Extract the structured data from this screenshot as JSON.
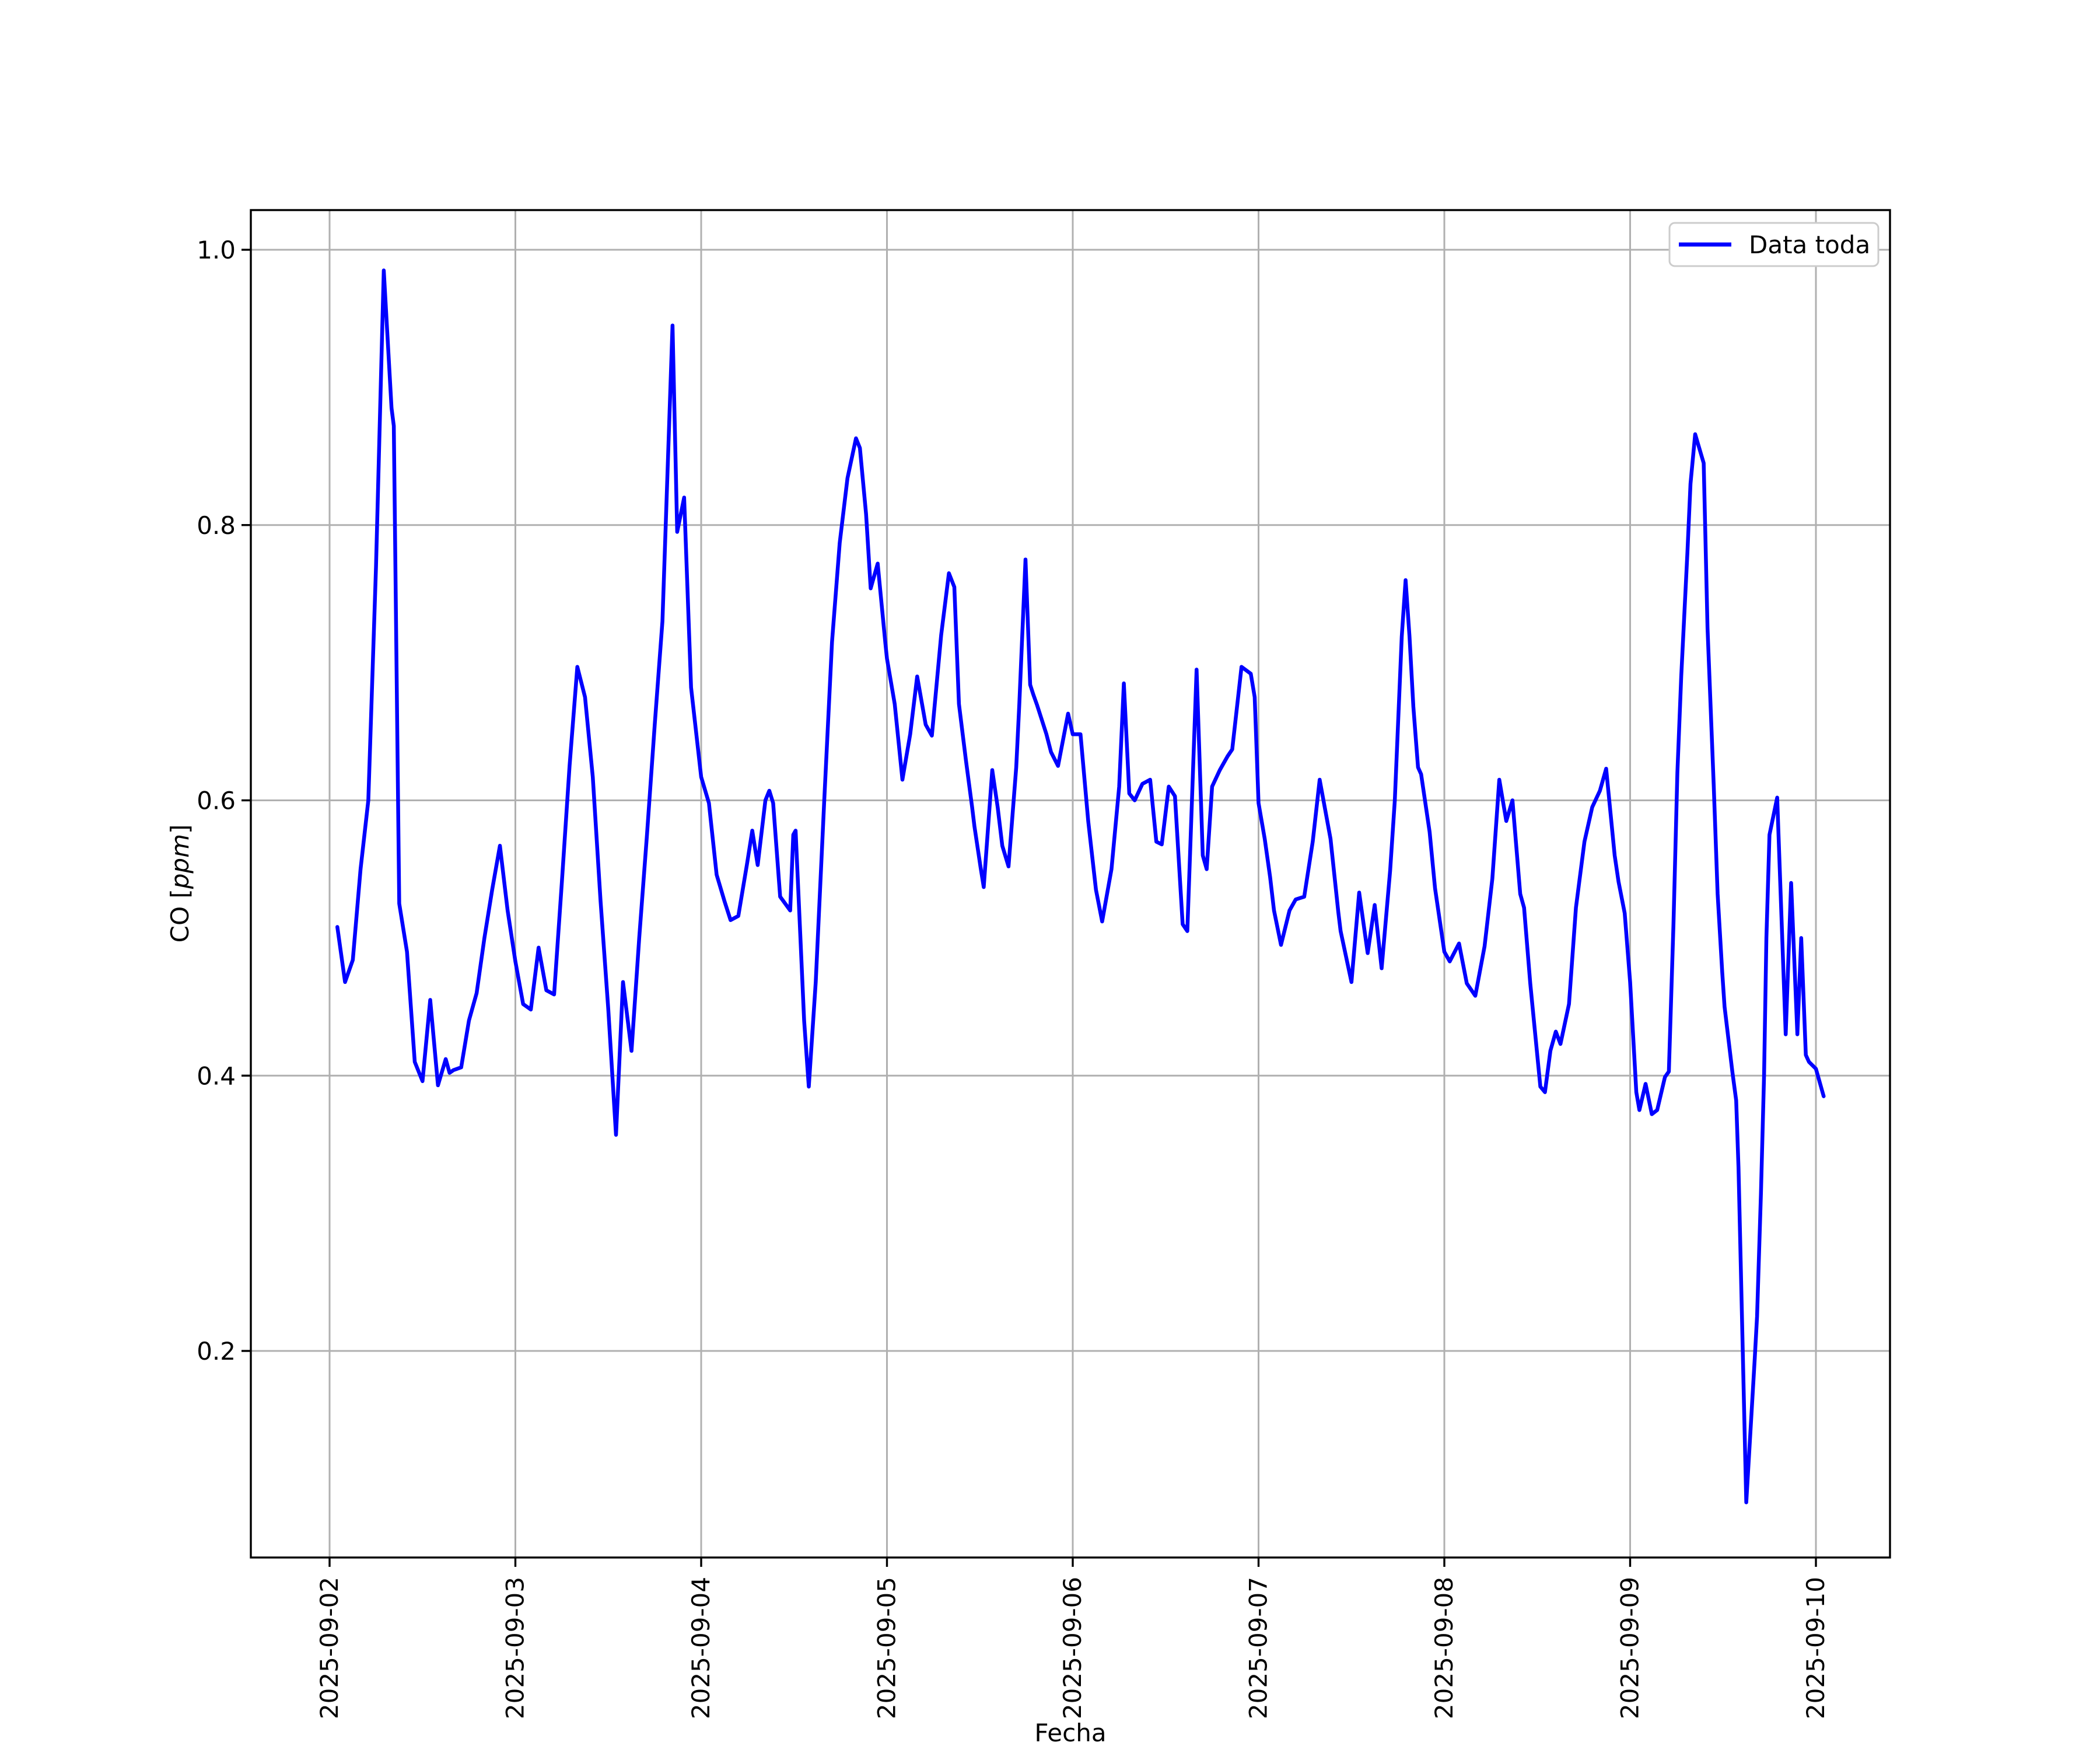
{
  "figure": {
    "background": "#ffffff",
    "axes_background": "#ffffff",
    "spine_color": "#000000",
    "grid_color": "#b0b0b0"
  },
  "chart_data": {
    "type": "line",
    "title": "",
    "xlabel": "Fecha",
    "ylabel": "CO [ppm]",
    "ylabel_parts": {
      "prefix": "CO [",
      "italic": "ppm",
      "suffix": "]"
    },
    "grid": true,
    "legend": {
      "position": "upper right",
      "entries": [
        {
          "label": "Data toda",
          "color": "#0000ff"
        }
      ]
    },
    "x_axis": {
      "label": "Fecha",
      "tick_labels": [
        "2025-09-02",
        "2025-09-03",
        "2025-09-04",
        "2025-09-05",
        "2025-09-06",
        "2025-09-07",
        "2025-09-08",
        "2025-09-09",
        "2025-09-10"
      ],
      "tick_hours": [
        0,
        24,
        48,
        72,
        96,
        120,
        144,
        168,
        192
      ],
      "unit": "hours since 2025-09-02 00:00"
    },
    "y_axis": {
      "ticks": [
        0.2,
        0.4,
        0.6,
        0.8,
        1.0
      ],
      "tick_labels": [
        "0.2",
        "0.4",
        "0.6",
        "0.8",
        "1.0"
      ],
      "range": [
        0.05,
        1.03
      ]
    },
    "series": [
      {
        "name": "Data toda",
        "color": "#0000ff",
        "points": [
          [
            1,
            0.508
          ],
          [
            2,
            0.468
          ],
          [
            3,
            0.484
          ],
          [
            4,
            0.55
          ],
          [
            5,
            0.6
          ],
          [
            6,
            0.77
          ],
          [
            7,
            0.985
          ],
          [
            8,
            0.885
          ],
          [
            8.3,
            0.872
          ],
          [
            9,
            0.525
          ],
          [
            10,
            0.49
          ],
          [
            11,
            0.41
          ],
          [
            12,
            0.396
          ],
          [
            13,
            0.455
          ],
          [
            14,
            0.393
          ],
          [
            15,
            0.412
          ],
          [
            15.5,
            0.402
          ],
          [
            16,
            0.404
          ],
          [
            17,
            0.406
          ],
          [
            18,
            0.44
          ],
          [
            19,
            0.46
          ],
          [
            20,
            0.5
          ],
          [
            21,
            0.535
          ],
          [
            22,
            0.567
          ],
          [
            23,
            0.52
          ],
          [
            24,
            0.483
          ],
          [
            25,
            0.452
          ],
          [
            26,
            0.448
          ],
          [
            27,
            0.493
          ],
          [
            28,
            0.462
          ],
          [
            29,
            0.459
          ],
          [
            30,
            0.54
          ],
          [
            31,
            0.625
          ],
          [
            32,
            0.697
          ],
          [
            33,
            0.675
          ],
          [
            34,
            0.617
          ],
          [
            35,
            0.527
          ],
          [
            36,
            0.448
          ],
          [
            37,
            0.357
          ],
          [
            37.9,
            0.468
          ],
          [
            39,
            0.418
          ],
          [
            40,
            0.5
          ],
          [
            41,
            0.575
          ],
          [
            42,
            0.655
          ],
          [
            43,
            0.73
          ],
          [
            44.3,
            0.945
          ],
          [
            44.9,
            0.795
          ],
          [
            45.8,
            0.82
          ],
          [
            46.7,
            0.682
          ],
          [
            48,
            0.617
          ],
          [
            49,
            0.598
          ],
          [
            50,
            0.546
          ],
          [
            51,
            0.527
          ],
          [
            51.8,
            0.513
          ],
          [
            52.8,
            0.516
          ],
          [
            53.9,
            0.553
          ],
          [
            54.6,
            0.578
          ],
          [
            55.3,
            0.553
          ],
          [
            56.3,
            0.6
          ],
          [
            56.8,
            0.607
          ],
          [
            57.3,
            0.598
          ],
          [
            58.2,
            0.53
          ],
          [
            59.5,
            0.52
          ],
          [
            59.9,
            0.575
          ],
          [
            60.2,
            0.578
          ],
          [
            61.3,
            0.44
          ],
          [
            61.9,
            0.392
          ],
          [
            62.8,
            0.468
          ],
          [
            63.9,
            0.6
          ],
          [
            64.9,
            0.715
          ],
          [
            65.9,
            0.787
          ],
          [
            66.9,
            0.834
          ],
          [
            68,
            0.863
          ],
          [
            68.5,
            0.856
          ],
          [
            69.3,
            0.808
          ],
          [
            69.9,
            0.754
          ],
          [
            70.8,
            0.772
          ],
          [
            71.8,
            0.714
          ],
          [
            72,
            0.703
          ],
          [
            73,
            0.67
          ],
          [
            74,
            0.615
          ],
          [
            75,
            0.648
          ],
          [
            75.9,
            0.69
          ],
          [
            77,
            0.655
          ],
          [
            77.8,
            0.647
          ],
          [
            79,
            0.72
          ],
          [
            80,
            0.765
          ],
          [
            80.7,
            0.755
          ],
          [
            81.3,
            0.67
          ],
          [
            82.2,
            0.629
          ],
          [
            83,
            0.595
          ],
          [
            83.3,
            0.581
          ],
          [
            84.1,
            0.551
          ],
          [
            84.5,
            0.537
          ],
          [
            85.6,
            0.622
          ],
          [
            86.3,
            0.595
          ],
          [
            86.9,
            0.567
          ],
          [
            87.7,
            0.552
          ],
          [
            88.7,
            0.624
          ],
          [
            89.1,
            0.67
          ],
          [
            89.9,
            0.775
          ],
          [
            90.5,
            0.684
          ],
          [
            90.9,
            0.677
          ],
          [
            91.4,
            0.669
          ],
          [
            92.6,
            0.648
          ],
          [
            93.2,
            0.635
          ],
          [
            94.1,
            0.625
          ],
          [
            95.4,
            0.663
          ],
          [
            96,
            0.648
          ],
          [
            97,
            0.648
          ],
          [
            98,
            0.585
          ],
          [
            99,
            0.535
          ],
          [
            99.8,
            0.512
          ],
          [
            101,
            0.55
          ],
          [
            102,
            0.61
          ],
          [
            102.6,
            0.685
          ],
          [
            103.3,
            0.605
          ],
          [
            104,
            0.6
          ],
          [
            105,
            0.612
          ],
          [
            106,
            0.615
          ],
          [
            106.8,
            0.57
          ],
          [
            107.5,
            0.568
          ],
          [
            108.4,
            0.61
          ],
          [
            109.2,
            0.603
          ],
          [
            110.2,
            0.51
          ],
          [
            110.8,
            0.505
          ],
          [
            112,
            0.695
          ],
          [
            112.8,
            0.56
          ],
          [
            113.3,
            0.55
          ],
          [
            114,
            0.61
          ],
          [
            115,
            0.622
          ],
          [
            116,
            0.632
          ],
          [
            116.6,
            0.637
          ],
          [
            117.8,
            0.697
          ],
          [
            119,
            0.692
          ],
          [
            119.5,
            0.675
          ],
          [
            120,
            0.598
          ],
          [
            120.8,
            0.572
          ],
          [
            121.5,
            0.544
          ],
          [
            122,
            0.52
          ],
          [
            122.9,
            0.495
          ],
          [
            124,
            0.52
          ],
          [
            124.8,
            0.528
          ],
          [
            125.9,
            0.53
          ],
          [
            127,
            0.57
          ],
          [
            127.9,
            0.615
          ],
          [
            129.3,
            0.572
          ],
          [
            130.3,
            0.519
          ],
          [
            130.6,
            0.505
          ],
          [
            132,
            0.468
          ],
          [
            133,
            0.533
          ],
          [
            134.1,
            0.489
          ],
          [
            135,
            0.524
          ],
          [
            135.9,
            0.478
          ],
          [
            137,
            0.549
          ],
          [
            137.6,
            0.6
          ],
          [
            138.5,
            0.719
          ],
          [
            139,
            0.76
          ],
          [
            139.5,
            0.719
          ],
          [
            140,
            0.668
          ],
          [
            140.6,
            0.624
          ],
          [
            141,
            0.619
          ],
          [
            141.5,
            0.6
          ],
          [
            142.1,
            0.577
          ],
          [
            142.8,
            0.536
          ],
          [
            144,
            0.49
          ],
          [
            144.7,
            0.483
          ],
          [
            145.9,
            0.496
          ],
          [
            146.9,
            0.467
          ],
          [
            148,
            0.458
          ],
          [
            149.2,
            0.494
          ],
          [
            150.2,
            0.543
          ],
          [
            151.1,
            0.615
          ],
          [
            152,
            0.585
          ],
          [
            152.8,
            0.6
          ],
          [
            153.8,
            0.532
          ],
          [
            154.3,
            0.522
          ],
          [
            155.1,
            0.467
          ],
          [
            156.4,
            0.392
          ],
          [
            157,
            0.388
          ],
          [
            157.7,
            0.418
          ],
          [
            158.4,
            0.432
          ],
          [
            159,
            0.423
          ],
          [
            160.1,
            0.452
          ],
          [
            161,
            0.522
          ],
          [
            162.1,
            0.57
          ],
          [
            163.1,
            0.595
          ],
          [
            164.1,
            0.607
          ],
          [
            164.9,
            0.623
          ],
          [
            166,
            0.56
          ],
          [
            166.5,
            0.541
          ],
          [
            167.3,
            0.518
          ],
          [
            168,
            0.468
          ],
          [
            168.8,
            0.388
          ],
          [
            169.2,
            0.375
          ],
          [
            170,
            0.394
          ],
          [
            170.8,
            0.372
          ],
          [
            171.5,
            0.375
          ],
          [
            172.5,
            0.399
          ],
          [
            173,
            0.403
          ],
          [
            173.6,
            0.51
          ],
          [
            174.1,
            0.62
          ],
          [
            174.6,
            0.69
          ],
          [
            175.4,
            0.78
          ],
          [
            175.8,
            0.83
          ],
          [
            176.4,
            0.866
          ],
          [
            177.5,
            0.845
          ],
          [
            178,
            0.725
          ],
          [
            178.8,
            0.611
          ],
          [
            179.3,
            0.532
          ],
          [
            179.9,
            0.475
          ],
          [
            180.2,
            0.45
          ],
          [
            181.2,
            0.403
          ],
          [
            181.7,
            0.382
          ],
          [
            182,
            0.333
          ],
          [
            183,
            0.09
          ],
          [
            184.1,
            0.195
          ],
          [
            184.4,
            0.225
          ],
          [
            184.9,
            0.315
          ],
          [
            185.3,
            0.4
          ],
          [
            185.6,
            0.5
          ],
          [
            186,
            0.575
          ],
          [
            187,
            0.602
          ],
          [
            188.1,
            0.43
          ],
          [
            188.8,
            0.54
          ],
          [
            189.6,
            0.43
          ],
          [
            190.1,
            0.5
          ],
          [
            190.7,
            0.415
          ],
          [
            191.1,
            0.41
          ],
          [
            192,
            0.405
          ],
          [
            193,
            0.385
          ]
        ]
      }
    ]
  }
}
